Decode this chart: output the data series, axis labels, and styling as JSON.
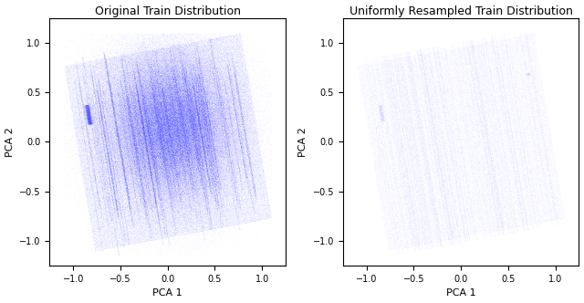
{
  "title1": "Original Train Distribution",
  "title2": "Uniformly Resampled Train Distribution",
  "xlabel": "PCA 1",
  "ylabel": "PCA 2",
  "xlim": [
    -1.25,
    1.25
  ],
  "ylim": [
    -1.25,
    1.25
  ],
  "xticks": [
    -1.0,
    -0.5,
    0.0,
    0.5,
    1.0
  ],
  "yticks": [
    -1.0,
    -0.5,
    0.0,
    0.5,
    1.0
  ],
  "n_points_original": 500000,
  "n_points_resampled": 200000,
  "color_original": "#0000ff",
  "color_resampled": "#0000ff",
  "alpha_original": 0.03,
  "alpha_resampled": 0.015,
  "seed": 42,
  "figsize": [
    6.4,
    3.32
  ],
  "dpi": 100
}
